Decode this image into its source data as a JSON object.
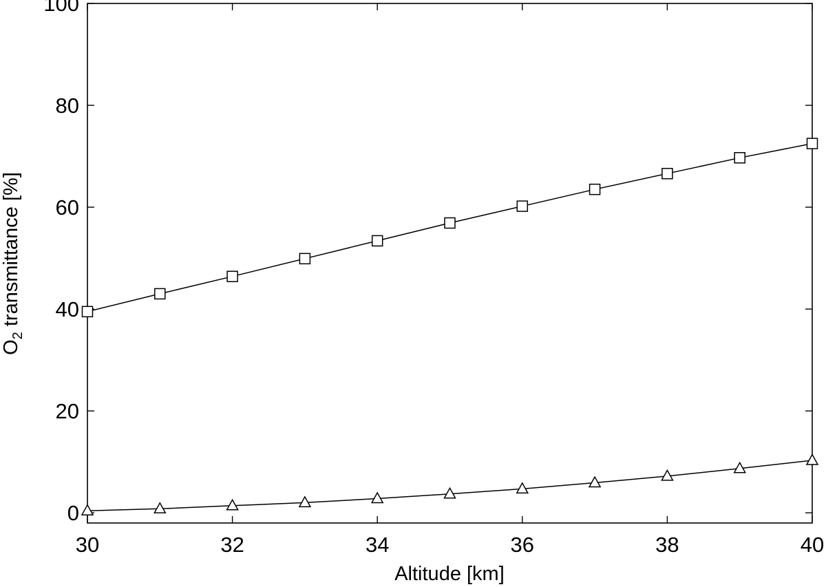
{
  "chart_data": {
    "type": "line",
    "title": "",
    "xlabel": "Altitude [km]",
    "ylabel": {
      "prefix": "O",
      "subscript": "2",
      "suffix": " transmittance [%]"
    },
    "xlim": [
      30,
      40
    ],
    "ylim": [
      -2,
      100
    ],
    "xticks": [
      30,
      32,
      34,
      36,
      38,
      40
    ],
    "yticks": [
      0,
      20,
      40,
      60,
      80,
      100
    ],
    "grid": false,
    "legend": "none",
    "x": [
      30,
      31,
      32,
      33,
      34,
      35,
      36,
      37,
      38,
      39,
      40
    ],
    "series": [
      {
        "marker": "square",
        "values": [
          39.5,
          43.0,
          46.4,
          49.9,
          53.4,
          56.9,
          60.2,
          63.5,
          66.6,
          69.7,
          72.5
        ]
      },
      {
        "marker": "triangle",
        "values": [
          0.4,
          0.8,
          1.4,
          2.0,
          2.8,
          3.7,
          4.7,
          5.9,
          7.2,
          8.7,
          10.3
        ]
      }
    ]
  }
}
